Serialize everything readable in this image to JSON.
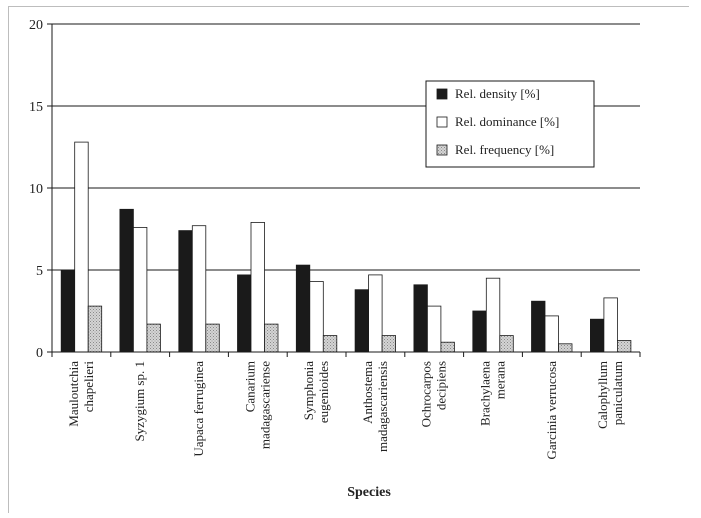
{
  "chart_data": {
    "type": "bar",
    "title": "",
    "xlabel": "Species",
    "ylabel": "",
    "ylim": [
      0,
      20
    ],
    "yticks": [
      0,
      5,
      10,
      15,
      20
    ],
    "grid": "horizontal",
    "legend_position": "top-right",
    "categories": [
      [
        "Mauloutchia",
        "chapelieri"
      ],
      [
        "Syzygium sp. 1"
      ],
      [
        "Uapaca ferruginea"
      ],
      [
        "Canarium",
        "madagascariense"
      ],
      [
        "Symphonia",
        "eugenioides"
      ],
      [
        "Anthostema",
        "madagascariensis"
      ],
      [
        "Ochrocarpos",
        "decipiens"
      ],
      [
        "Brachylaena",
        "merana"
      ],
      [
        "Garcinia verrucosa"
      ],
      [
        "Calophyllum",
        "paniculatum"
      ]
    ],
    "series": [
      {
        "name": "Rel. density [%]",
        "color": "#1a1a1a",
        "values": [
          5.0,
          8.7,
          7.4,
          4.7,
          5.3,
          3.8,
          4.1,
          2.5,
          3.1,
          2.0
        ]
      },
      {
        "name": "Rel. dominance [%]",
        "color": "#ffffff",
        "values": [
          12.8,
          7.6,
          7.7,
          7.9,
          4.3,
          4.7,
          2.8,
          4.5,
          2.2,
          3.3
        ]
      },
      {
        "name": "Rel. frequency [%]",
        "color": "#c8c8c8",
        "values": [
          2.8,
          1.7,
          1.7,
          1.7,
          1.0,
          1.0,
          0.6,
          1.0,
          0.5,
          0.7
        ]
      }
    ]
  }
}
